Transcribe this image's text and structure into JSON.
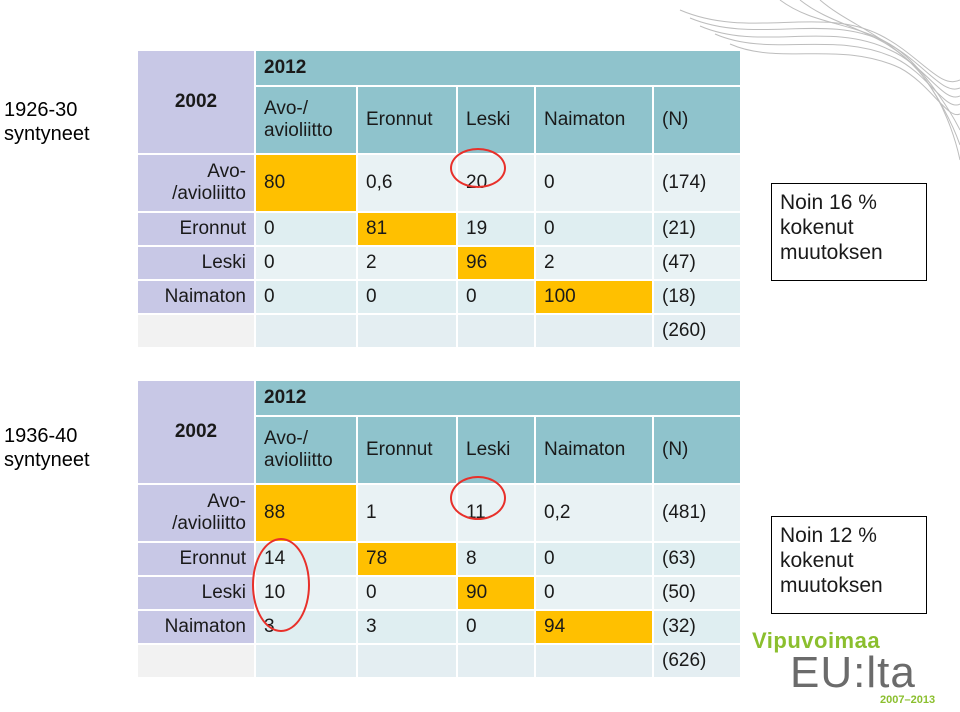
{
  "cohorts": [
    {
      "label_line1": "1926-30",
      "label_line2": "syntyneet",
      "col_year": "2012",
      "row_year": "2002",
      "headers": [
        "Avo-/\navioliitto",
        "Eronnut",
        "Leski",
        "Naimaton",
        "(N)"
      ],
      "rows": [
        {
          "label": "Avo-\n/avioliitto",
          "values": [
            "80",
            "0,6",
            "20",
            "0",
            "(174)"
          ]
        },
        {
          "label": "Eronnut",
          "values": [
            "0",
            "81",
            "19",
            "0",
            "(21)"
          ]
        },
        {
          "label": "Leski",
          "values": [
            "0",
            "2",
            "96",
            "2",
            "(47)"
          ]
        },
        {
          "label": "Naimaton",
          "values": [
            "0",
            "0",
            "0",
            "100",
            "(18)"
          ]
        }
      ],
      "total": "(260)",
      "note": "Noin 16 %\nkokenut\nmuutoksen"
    },
    {
      "label_line1": "1936-40",
      "label_line2": "syntyneet",
      "col_year": "2012",
      "row_year": "2002",
      "headers": [
        "Avo-/\navioliitto",
        "Eronnut",
        "Leski",
        "Naimaton",
        "(N)"
      ],
      "rows": [
        {
          "label": "Avo-\n/avioliitto",
          "values": [
            "88",
            "1",
            "11",
            "0,2",
            "(481)"
          ]
        },
        {
          "label": "Eronnut",
          "values": [
            "14",
            "78",
            "8",
            "0",
            "(63)"
          ]
        },
        {
          "label": "Leski",
          "values": [
            "10",
            "0",
            "90",
            "0",
            "(50)"
          ]
        },
        {
          "label": "Naimaton",
          "values": [
            "3",
            "3",
            "0",
            "94",
            "(32)"
          ]
        }
      ],
      "total": "(626)",
      "note": "Noin 12 %\nkokenut\nmuutoksen"
    }
  ],
  "logo": {
    "top": "Vipuvoimaa",
    "main": "EU:lta",
    "years": "2007–2013"
  },
  "colors": {
    "header_teal": "#8fc3cc",
    "row_lavender": "#c8c8e6",
    "highlight": "#ffc000",
    "circle_red": "#e8302a",
    "logo_green": "#8bbf2e"
  }
}
